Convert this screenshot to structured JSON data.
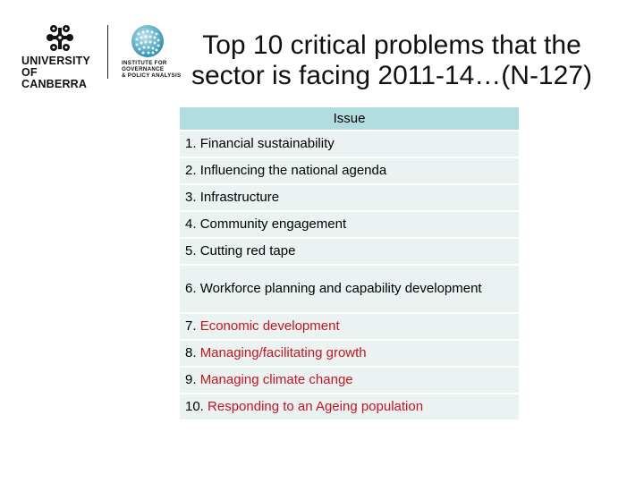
{
  "logos": {
    "university_line1": "UNIVERSITY OF",
    "university_line2": "CANBERRA",
    "institute_line1": "INSTITUTE FOR",
    "institute_line2": "GOVERNANCE",
    "institute_line3": "& POLICY ANALYSIS"
  },
  "title": {
    "line1": "Top 10 critical problems that the",
    "line2": "sector is facing 2011-14…(N-127)"
  },
  "table": {
    "header": "Issue",
    "rows": [
      {
        "num": "1.",
        "text": "Financial sustainability",
        "highlight": false
      },
      {
        "num": "2.",
        "text": "Influencing the national agenda",
        "highlight": false
      },
      {
        "num": "3.",
        "text": "Infrastructure",
        "highlight": false
      },
      {
        "num": "4.",
        "text": "Community engagement",
        "highlight": false
      },
      {
        "num": "5.",
        "text": "Cutting red tape",
        "highlight": false
      },
      {
        "num": "6.",
        "text": "Workforce planning and capability development",
        "highlight": false
      },
      {
        "num": "7.",
        "text": "Economic development",
        "highlight": true
      },
      {
        "num": "8.",
        "text": "Managing/facilitating growth",
        "highlight": true
      },
      {
        "num": "9.",
        "text": "Managing climate change",
        "highlight": true
      },
      {
        "num": "10.",
        "text": "Responding to an Ageing population",
        "highlight": true
      }
    ]
  },
  "colors": {
    "header_bg": "#b2dde0",
    "row_bg": "#eaf2f2",
    "highlight_text": "#c8141e"
  }
}
